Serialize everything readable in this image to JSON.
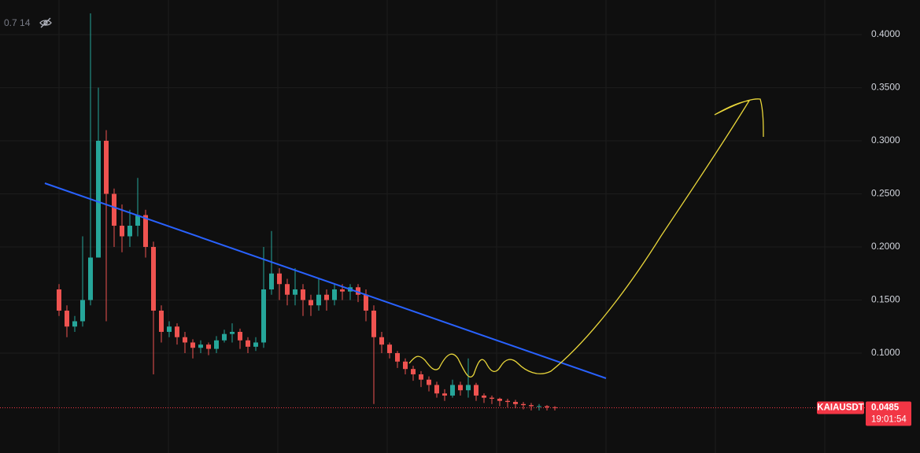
{
  "chart_data": {
    "type": "candlestick",
    "legend_text": "0.7 14",
    "ylim": [
      0.0059,
      0.4326
    ],
    "yticks": [
      {
        "value": 0.1,
        "label": "0.1000"
      },
      {
        "value": 0.15,
        "label": "0.1500"
      },
      {
        "value": 0.2,
        "label": "0.2000"
      },
      {
        "value": 0.25,
        "label": "0.2500"
      },
      {
        "value": 0.3,
        "label": "0.3000"
      },
      {
        "value": 0.35,
        "label": "0.3500"
      },
      {
        "value": 0.4,
        "label": "0.4000"
      }
    ],
    "grid": true,
    "up_color": "#26a69a",
    "down_color": "#ef5350",
    "open": [
      0.16,
      0.14,
      0.125,
      0.13,
      0.15,
      0.19,
      0.3,
      0.25,
      0.22,
      0.21,
      0.22,
      0.23,
      0.2,
      0.14,
      0.12,
      0.125,
      0.115,
      0.11,
      0.105,
      0.108,
      0.104,
      0.112,
      0.118,
      0.12,
      0.112,
      0.106,
      0.11,
      0.16,
      0.175,
      0.165,
      0.155,
      0.16,
      0.15,
      0.145,
      0.155,
      0.15,
      0.16,
      0.158,
      0.162,
      0.155,
      0.14,
      0.115,
      0.108,
      0.1,
      0.092,
      0.085,
      0.08,
      0.075,
      0.07,
      0.062,
      0.06,
      0.07,
      0.065,
      0.07,
      0.06,
      0.058,
      0.057,
      0.055,
      0.054,
      0.052,
      0.051,
      0.05,
      0.05,
      0.049
    ],
    "high": [
      0.165,
      0.145,
      0.135,
      0.21,
      0.42,
      0.35,
      0.31,
      0.255,
      0.24,
      0.235,
      0.265,
      0.235,
      0.205,
      0.145,
      0.13,
      0.128,
      0.12,
      0.113,
      0.112,
      0.11,
      0.116,
      0.122,
      0.128,
      0.123,
      0.115,
      0.115,
      0.2,
      0.215,
      0.18,
      0.17,
      0.18,
      0.165,
      0.155,
      0.17,
      0.16,
      0.165,
      0.165,
      0.165,
      0.165,
      0.16,
      0.145,
      0.12,
      0.11,
      0.102,
      0.095,
      0.088,
      0.083,
      0.078,
      0.073,
      0.066,
      0.075,
      0.073,
      0.095,
      0.072,
      0.062,
      0.06,
      0.058,
      0.057,
      0.056,
      0.054,
      0.053,
      0.052,
      0.051,
      0.05
    ],
    "low": [
      0.135,
      0.115,
      0.12,
      0.125,
      0.145,
      0.19,
      0.13,
      0.2,
      0.195,
      0.2,
      0.21,
      0.19,
      0.08,
      0.11,
      0.115,
      0.108,
      0.1,
      0.095,
      0.1,
      0.098,
      0.1,
      0.11,
      0.11,
      0.104,
      0.1,
      0.102,
      0.105,
      0.155,
      0.15,
      0.145,
      0.145,
      0.135,
      0.135,
      0.14,
      0.14,
      0.145,
      0.15,
      0.15,
      0.148,
      0.13,
      0.052,
      0.1,
      0.095,
      0.086,
      0.08,
      0.074,
      0.068,
      0.064,
      0.058,
      0.055,
      0.058,
      0.06,
      0.058,
      0.055,
      0.053,
      0.052,
      0.05,
      0.049,
      0.048,
      0.047,
      0.046,
      0.046,
      0.046,
      0.046
    ],
    "close": [
      0.14,
      0.125,
      0.13,
      0.15,
      0.19,
      0.3,
      0.25,
      0.22,
      0.21,
      0.22,
      0.23,
      0.2,
      0.14,
      0.12,
      0.125,
      0.115,
      0.11,
      0.105,
      0.108,
      0.104,
      0.112,
      0.118,
      0.12,
      0.112,
      0.106,
      0.11,
      0.16,
      0.175,
      0.165,
      0.155,
      0.16,
      0.15,
      0.145,
      0.155,
      0.15,
      0.16,
      0.158,
      0.162,
      0.155,
      0.14,
      0.115,
      0.108,
      0.1,
      0.092,
      0.085,
      0.08,
      0.075,
      0.07,
      0.062,
      0.06,
      0.07,
      0.065,
      0.07,
      0.06,
      0.058,
      0.057,
      0.055,
      0.054,
      0.052,
      0.051,
      0.05,
      0.05,
      0.049,
      0.0485
    ],
    "last_price": {
      "symbol": "KAIAUSDT",
      "value": 0.0485,
      "countdown": "19:01:54",
      "color": "#f23645"
    }
  }
}
